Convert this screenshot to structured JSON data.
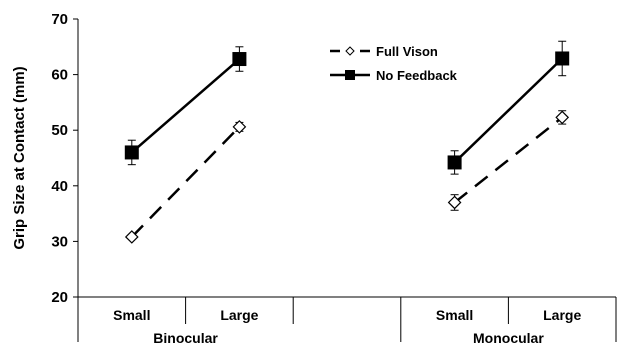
{
  "chart_data": {
    "type": "line",
    "ylabel": "Grip Size at Contact (mm)",
    "xlabel": "",
    "ylim": [
      20,
      70
    ],
    "yticks": [
      20,
      30,
      40,
      50,
      60,
      70
    ],
    "grid": false,
    "legend": "top-center",
    "groups": [
      {
        "name": "Binocular",
        "categories": [
          "Small",
          "Large"
        ],
        "series": [
          {
            "name": "Full Vison",
            "values": [
              30.8,
              50.6
            ],
            "errors": [
              0,
              0.8
            ],
            "marker": "diamond-open",
            "line": "dashed"
          },
          {
            "name": "No Feedback",
            "values": [
              46.0,
              62.8
            ],
            "errors": [
              2.2,
              2.2
            ],
            "marker": "square-filled",
            "line": "solid"
          }
        ]
      },
      {
        "name": "Monocular",
        "categories": [
          "Small",
          "Large"
        ],
        "series": [
          {
            "name": "Full Vison",
            "values": [
              37.0,
              52.3
            ],
            "errors": [
              1.4,
              1.2
            ],
            "marker": "diamond-open",
            "line": "dashed"
          },
          {
            "name": "No Feedback",
            "values": [
              44.2,
              62.9
            ],
            "errors": [
              2.1,
              3.1
            ],
            "marker": "square-filled",
            "line": "solid"
          }
        ]
      }
    ],
    "legend_entries": [
      {
        "name": "Full Vison",
        "marker": "diamond-open",
        "line": "dashed"
      },
      {
        "name": "No Feedback",
        "marker": "square-filled",
        "line": "solid"
      }
    ]
  }
}
